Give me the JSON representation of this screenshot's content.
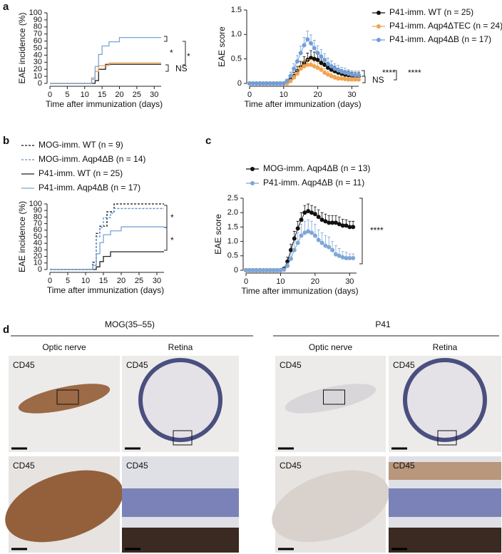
{
  "panel_labels": [
    "a",
    "b",
    "c",
    "d"
  ],
  "chart_data": [
    {
      "type": "step",
      "ylabel": "EAE incidence (%)",
      "xlabel": "Time after immunization (days)",
      "xlim": [
        0,
        32
      ],
      "xticks": [
        0,
        5,
        10,
        15,
        20,
        25,
        30
      ],
      "ylim": [
        0,
        100
      ],
      "yticks": [
        0,
        10,
        20,
        30,
        40,
        50,
        60,
        70,
        80,
        90,
        100
      ],
      "series": [
        {
          "color": "#222222",
          "dashed": false,
          "x": [
            0,
            13,
            14,
            16,
            32
          ],
          "values": [
            0,
            4,
            20,
            27,
            27
          ]
        },
        {
          "color": "#f2a450",
          "dashed": false,
          "x": [
            0,
            12,
            13,
            14,
            17,
            32
          ],
          "values": [
            0,
            8,
            17,
            25,
            29,
            29
          ]
        },
        {
          "color": "#79a4d6",
          "dashed": false,
          "x": [
            0,
            12,
            13,
            14,
            15,
            17,
            20,
            32
          ],
          "values": [
            0,
            6,
            24,
            41,
            53,
            59,
            65,
            65
          ]
        }
      ],
      "annotations": [
        "*",
        "*",
        "NS"
      ]
    },
    {
      "type": "line",
      "ylabel": "EAE score",
      "xlabel": "Time after immunization (days)",
      "xlim": [
        0,
        32
      ],
      "xticks": [
        0,
        10,
        20,
        30
      ],
      "ylim": [
        0,
        1.5
      ],
      "yticks": [
        0,
        0.5,
        {
          "value": 1,
          "label": "1.0"
        },
        1.5
      ],
      "x": [
        0,
        1,
        2,
        3,
        4,
        5,
        6,
        7,
        8,
        9,
        10,
        11,
        12,
        13,
        14,
        15,
        16,
        17,
        18,
        19,
        20,
        21,
        22,
        23,
        24,
        25,
        26,
        27,
        28,
        29,
        30,
        31,
        32
      ],
      "series": [
        {
          "name": "P41-imm. WT (n = 25)",
          "color": "#111111",
          "values": [
            0,
            0,
            0,
            0,
            0,
            0,
            0,
            0,
            0,
            0,
            0,
            0.04,
            0.08,
            0.15,
            0.25,
            0.33,
            0.42,
            0.48,
            0.52,
            0.5,
            0.48,
            0.42,
            0.38,
            0.32,
            0.28,
            0.25,
            0.22,
            0.2,
            0.18,
            0.17,
            0.16,
            0.15,
            0.15
          ],
          "errors": [
            0,
            0,
            0,
            0,
            0,
            0,
            0,
            0,
            0,
            0,
            0,
            0.04,
            0.05,
            0.08,
            0.1,
            0.12,
            0.13,
            0.14,
            0.15,
            0.14,
            0.14,
            0.13,
            0.12,
            0.11,
            0.1,
            0.1,
            0.09,
            0.08,
            0.08,
            0.08,
            0.07,
            0.07,
            0.07
          ]
        },
        {
          "name": "P41-imm. Aqp4ΔTEC (n = 24)",
          "color": "#f2a450",
          "values": [
            0,
            0,
            0,
            0,
            0,
            0,
            0,
            0,
            0,
            0,
            0,
            0,
            0.05,
            0.12,
            0.2,
            0.3,
            0.35,
            0.38,
            0.38,
            0.35,
            0.32,
            0.28,
            0.22,
            0.18,
            0.15,
            0.12,
            0.1,
            0.1,
            0.09,
            0.08,
            0.08,
            0.08,
            0.08
          ],
          "errors": [
            0,
            0,
            0,
            0,
            0,
            0,
            0,
            0,
            0,
            0,
            0,
            0,
            0.03,
            0.05,
            0.07,
            0.09,
            0.1,
            0.11,
            0.11,
            0.1,
            0.1,
            0.09,
            0.08,
            0.07,
            0.06,
            0.05,
            0.05,
            0.05,
            0.04,
            0.04,
            0.04,
            0.04,
            0.04
          ]
        },
        {
          "name": "P41-imm. Aqp4ΔB (n = 17)",
          "color": "#6f9fd8",
          "values": [
            0,
            0,
            0,
            0,
            0,
            0,
            0,
            0,
            0,
            0,
            0,
            0.05,
            0.15,
            0.3,
            0.45,
            0.62,
            0.78,
            0.9,
            0.82,
            0.72,
            0.62,
            0.55,
            0.48,
            0.4,
            0.35,
            0.3,
            0.27,
            0.24,
            0.22,
            0.2,
            0.18,
            0.17,
            0.17
          ],
          "errors": [
            0,
            0,
            0,
            0,
            0,
            0,
            0,
            0,
            0,
            0,
            0,
            0.04,
            0.08,
            0.1,
            0.12,
            0.14,
            0.16,
            0.17,
            0.17,
            0.16,
            0.15,
            0.14,
            0.13,
            0.12,
            0.11,
            0.1,
            0.1,
            0.09,
            0.09,
            0.08,
            0.08,
            0.08,
            0.08
          ]
        }
      ],
      "annotations": [
        "****",
        "****",
        "NS"
      ]
    },
    {
      "type": "step",
      "ylabel": "EAE incidence (%)",
      "xlabel": "Time after immunization (days)",
      "xlim": [
        0,
        32
      ],
      "xticks": [
        0,
        5,
        10,
        15,
        20,
        25,
        30
      ],
      "ylim": [
        0,
        100
      ],
      "yticks": [
        0,
        10,
        20,
        30,
        40,
        50,
        60,
        70,
        80,
        90,
        100
      ],
      "series": [
        {
          "name": "MOG-imm. WT (n = 9)",
          "color": "#111111",
          "dashed": true,
          "x": [
            0,
            12,
            13,
            14,
            16,
            18,
            32
          ],
          "values": [
            0,
            11,
            55,
            66,
            88,
            100,
            100
          ]
        },
        {
          "name": "MOG-imm. Aqp4ΔB (n = 14)",
          "color": "#5b8fcf",
          "dashed": true,
          "x": [
            0,
            12,
            13,
            14,
            15,
            17,
            18,
            32
          ],
          "values": [
            0,
            7,
            50,
            64,
            79,
            86,
            93,
            93
          ]
        },
        {
          "name": "P41-imm. WT (n = 25)",
          "color": "#222222",
          "dashed": false,
          "x": [
            0,
            13,
            14,
            15,
            17,
            32
          ],
          "values": [
            0,
            4,
            12,
            20,
            27,
            27
          ]
        },
        {
          "name": "P41-imm. Aqp4ΔB (n = 17)",
          "color": "#79a4d6",
          "dashed": false,
          "x": [
            0,
            12,
            13,
            14,
            15,
            17,
            20,
            32
          ],
          "values": [
            0,
            6,
            24,
            41,
            53,
            59,
            65,
            65
          ]
        }
      ],
      "annotations": [
        "*",
        "*"
      ]
    },
    {
      "type": "line",
      "ylabel": "EAE score",
      "xlabel": "Time after immunization (days)",
      "xlim": [
        0,
        32
      ],
      "xticks": [
        0,
        10,
        20,
        30
      ],
      "ylim": [
        0,
        2.5
      ],
      "yticks": [
        0,
        0.5,
        {
          "value": 1,
          "label": "1.0"
        },
        1.5,
        {
          "value": 2,
          "label": "2.0"
        },
        2.5
      ],
      "x": [
        0,
        1,
        2,
        3,
        4,
        5,
        6,
        7,
        8,
        9,
        10,
        11,
        12,
        13,
        14,
        15,
        16,
        17,
        18,
        19,
        20,
        21,
        22,
        23,
        24,
        25,
        26,
        27,
        28,
        29,
        30,
        31
      ],
      "series": [
        {
          "name": "MOG-imm. Aqp4ΔB (n = 13)",
          "color": "#111111",
          "values": [
            0,
            0,
            0,
            0,
            0,
            0,
            0,
            0,
            0,
            0,
            0,
            0.05,
            0.3,
            0.7,
            1.1,
            1.45,
            1.75,
            2.0,
            2.05,
            2.0,
            1.95,
            1.85,
            1.75,
            1.7,
            1.65,
            1.65,
            1.65,
            1.6,
            1.55,
            1.55,
            1.5,
            1.5
          ],
          "errors": [
            0,
            0,
            0,
            0,
            0,
            0,
            0,
            0,
            0,
            0,
            0,
            0.05,
            0.15,
            0.2,
            0.25,
            0.25,
            0.25,
            0.25,
            0.25,
            0.25,
            0.25,
            0.25,
            0.25,
            0.25,
            0.25,
            0.25,
            0.25,
            0.25,
            0.22,
            0.2,
            0.2,
            0.2
          ]
        },
        {
          "name": "P41-imm. Aqp4ΔB (n = 11)",
          "color": "#7ea6d8",
          "values": [
            0,
            0,
            0,
            0,
            0,
            0,
            0,
            0,
            0,
            0,
            0,
            0.02,
            0.15,
            0.4,
            0.7,
            0.95,
            1.2,
            1.3,
            1.35,
            1.3,
            1.2,
            1.05,
            0.95,
            0.85,
            0.8,
            0.7,
            0.55,
            0.5,
            0.45,
            0.42,
            0.42,
            0.42
          ],
          "errors": [
            0,
            0,
            0,
            0,
            0,
            0,
            0,
            0,
            0,
            0,
            0,
            0.03,
            0.1,
            0.2,
            0.3,
            0.35,
            0.4,
            0.4,
            0.4,
            0.4,
            0.4,
            0.35,
            0.35,
            0.35,
            0.35,
            0.3,
            0.3,
            0.25,
            0.2,
            0.2,
            0.15,
            0.15
          ]
        }
      ],
      "annotations": [
        "****"
      ]
    }
  ],
  "panel_d": {
    "groups": [
      {
        "title": "MOG(35–55)",
        "columns": [
          "Optic nerve",
          "Retina"
        ],
        "stain": "CD45"
      },
      {
        "title": "P41",
        "columns": [
          "Optic nerve",
          "Retina"
        ],
        "stain": "CD45"
      }
    ]
  }
}
